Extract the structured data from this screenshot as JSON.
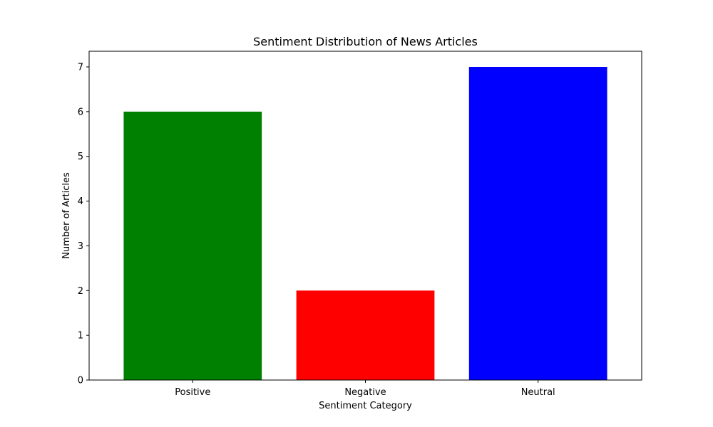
{
  "chart_data": {
    "type": "bar",
    "title": "Sentiment Distribution of News Articles",
    "xlabel": "Sentiment Category",
    "ylabel": "Number of Articles",
    "categories": [
      "Positive",
      "Negative",
      "Neutral"
    ],
    "values": [
      6,
      2,
      7
    ],
    "colors": [
      "#008000",
      "#ff0000",
      "#0000ff"
    ],
    "ylim": [
      0,
      7.35
    ],
    "yticks": [
      0,
      1,
      2,
      3,
      4,
      5,
      6,
      7
    ],
    "grid": false,
    "legend": "none"
  }
}
